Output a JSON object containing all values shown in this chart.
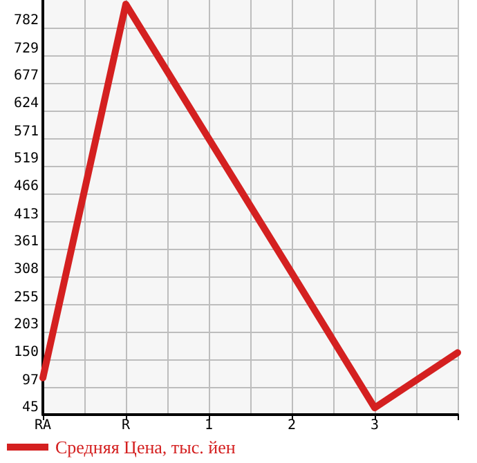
{
  "chart_data": {
    "type": "line",
    "categories": [
      "RA",
      "R",
      "1",
      "2",
      "3",
      null
    ],
    "series": [
      {
        "name": "Средняя Цена, тыс. йен",
        "color": "#d42020",
        "values": [
          115,
          827,
          571,
          315,
          58,
          163
        ]
      }
    ],
    "ylim": [
      45,
      835
    ],
    "yticks": [
      45,
      97,
      150,
      203,
      255,
      308,
      361,
      413,
      466,
      519,
      571,
      624,
      677,
      729,
      782
    ],
    "grid": true,
    "legend": "bottom left",
    "marker": "none",
    "line_style": "solid"
  }
}
